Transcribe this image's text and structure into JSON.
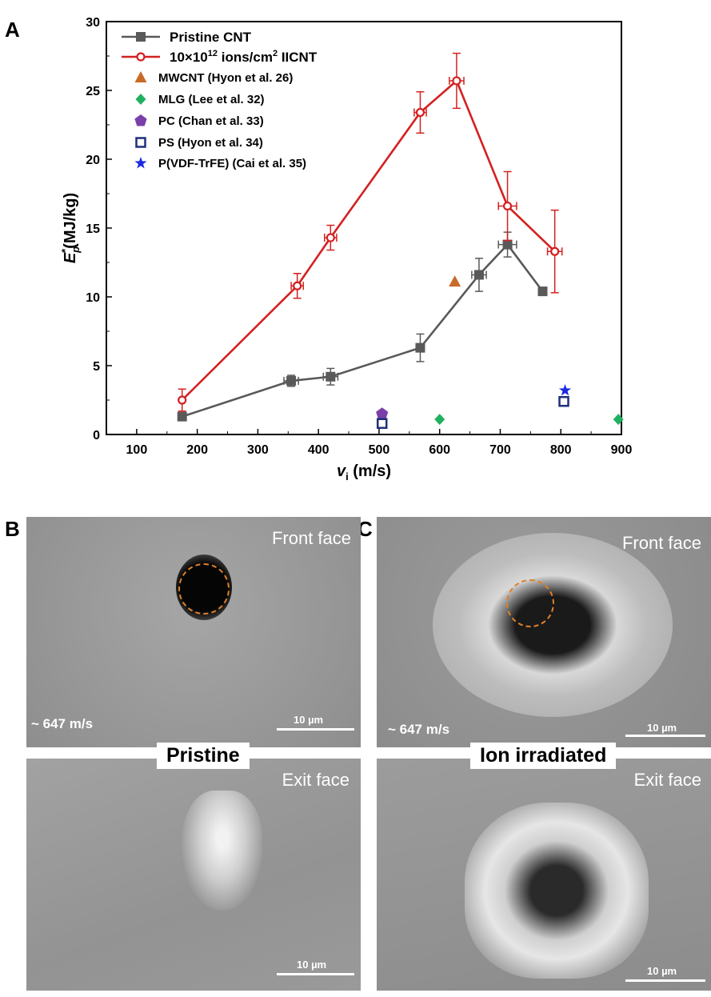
{
  "chart_data": {
    "type": "line",
    "panel_label": "A",
    "xlabel_main": "v",
    "xlabel_sub": "i",
    "xlabel_unit": " (m/s)",
    "ylabel_main": "E",
    "ylabel_sub": "p",
    "ylabel_sup": "*",
    "ylabel_unit": "(MJ/kg)",
    "xlim": [
      50,
      900
    ],
    "ylim": [
      0,
      30
    ],
    "xticks": [
      100,
      200,
      300,
      400,
      500,
      600,
      700,
      800,
      900
    ],
    "yticks": [
      0,
      5,
      10,
      15,
      20,
      25,
      30
    ],
    "grid": false,
    "legend_position": "top-left",
    "series": [
      {
        "name": "Pristine CNT",
        "color": "#595959",
        "marker": "square",
        "points": [
          {
            "x": 175,
            "y": 1.3,
            "xerr": 0,
            "yerr": 0
          },
          {
            "x": 355,
            "y": 3.9,
            "xerr": 12,
            "yerr": 0.4
          },
          {
            "x": 420,
            "y": 4.2,
            "xerr": 12,
            "yerr": 0.6
          },
          {
            "x": 568,
            "y": 6.3,
            "xerr": 0,
            "yerr": 1.0
          },
          {
            "x": 665,
            "y": 11.6,
            "xerr": 12,
            "yerr": 1.2
          },
          {
            "x": 712,
            "y": 13.8,
            "xerr": 15,
            "yerr": 0.9
          },
          {
            "x": 770,
            "y": 10.4,
            "xerr": 0,
            "yerr": 0
          }
        ]
      },
      {
        "name_prefix": "10×10",
        "name_exp": "12",
        "name_mid": " ions/cm",
        "name_exp2": "2",
        "name_suffix": " IICNT",
        "color": "#d42020",
        "marker": "circle",
        "points": [
          {
            "x": 175,
            "y": 2.5,
            "xerr": 0,
            "yerr": 0.8
          },
          {
            "x": 365,
            "y": 10.8,
            "xerr": 10,
            "yerr": 0.9
          },
          {
            "x": 420,
            "y": 14.3,
            "xerr": 10,
            "yerr": 0.9
          },
          {
            "x": 568,
            "y": 23.4,
            "xerr": 10,
            "yerr": 1.5
          },
          {
            "x": 628,
            "y": 25.7,
            "xerr": 12,
            "yerr": 2.0
          },
          {
            "x": 712,
            "y": 16.6,
            "xerr": 15,
            "yerr": 2.5
          },
          {
            "x": 790,
            "y": 13.3,
            "xerr": 12,
            "yerr": 3.0
          }
        ]
      }
    ],
    "reference_points": [
      {
        "name": "MWCNT (Hyon et al. 26)",
        "marker": "triangle",
        "color": "#c86a28",
        "x": [
          625
        ],
        "y": [
          11.1
        ]
      },
      {
        "name": "MLG (Lee et al. 32)",
        "marker": "diamond",
        "color": "#1fb060",
        "x": [
          600,
          895
        ],
        "y": [
          1.1,
          1.1
        ]
      },
      {
        "name": "PC (Chan et al. 33)",
        "marker": "pentagon",
        "color": "#7a3fa8",
        "x": [
          505
        ],
        "y": [
          1.5
        ]
      },
      {
        "name": "PS (Hyon et al. 34)",
        "marker": "open-square",
        "color": "#1f2f7a",
        "x": [
          505,
          805
        ],
        "y": [
          0.8,
          2.4
        ]
      },
      {
        "name": "P(VDF-TrFE) (Cai et al. 35)",
        "marker": "star",
        "color": "#1a2ae0",
        "x": [
          807
        ],
        "y": [
          3.2
        ]
      }
    ]
  },
  "micrographs": {
    "panel_b_label": "B",
    "panel_c_label": "C",
    "front_face": "Front face",
    "exit_face": "Exit face",
    "speed": "~ 647 m/s",
    "scale": "10 µm",
    "pristine_label": "Pristine",
    "irradiated_label": "Ion irradiated"
  }
}
